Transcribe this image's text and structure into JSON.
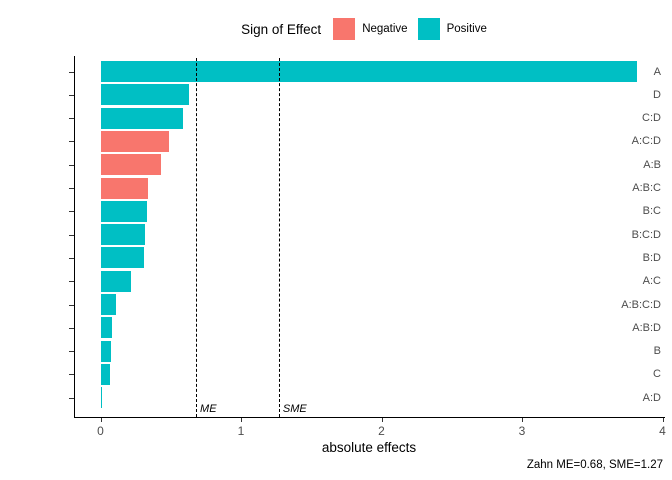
{
  "legend": {
    "title": "Sign of Effect",
    "items": [
      {
        "label": "Negative",
        "color": "#F8766D"
      },
      {
        "label": "Positive",
        "color": "#00BFC4"
      }
    ]
  },
  "chart_data": {
    "type": "bar",
    "orientation": "horizontal",
    "title": "",
    "xlabel": "absolute effects",
    "ylabel": "",
    "xlim": [
      0,
      4
    ],
    "x_ticks": [
      0,
      1,
      2,
      3,
      4
    ],
    "grid": false,
    "legend_position": "top",
    "categories": [
      "A",
      "D",
      "C:D",
      "A:C:D",
      "A:B",
      "A:B:C",
      "B:C",
      "B:C:D",
      "B:D",
      "A:C",
      "A:B:C:D",
      "A:B:D",
      "B",
      "C",
      "A:D"
    ],
    "values": [
      3.82,
      0.63,
      0.59,
      0.49,
      0.43,
      0.34,
      0.33,
      0.32,
      0.31,
      0.22,
      0.11,
      0.085,
      0.075,
      0.07,
      0.01
    ],
    "signs": [
      "Positive",
      "Positive",
      "Positive",
      "Negative",
      "Negative",
      "Negative",
      "Positive",
      "Positive",
      "Positive",
      "Positive",
      "Positive",
      "Positive",
      "Positive",
      "Positive",
      "Positive"
    ],
    "sign_colors": {
      "Negative": "#F8766D",
      "Positive": "#00BFC4"
    },
    "reference_lines": [
      {
        "label": "ME",
        "value": 0.68
      },
      {
        "label": "SME",
        "value": 1.27
      }
    ],
    "caption": "Zahn ME=0.68, SME=1.27"
  }
}
